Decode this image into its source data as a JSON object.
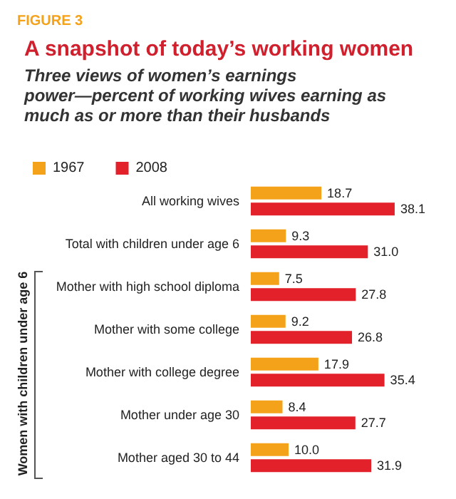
{
  "chart_data": {
    "type": "bar",
    "orientation": "horizontal",
    "title": "A snapshot of today’s working women",
    "subtitle": "Three views of women’s earnings power—percent of working wives earning as much as or more than their husbands",
    "annotations": [
      "FIGURE 3",
      "Women with children under age 6"
    ],
    "categories": [
      "All working wives",
      "Total with children under age 6",
      "Mother with high school diploma",
      "Mother with some college",
      "Mother with college degree",
      "Mother under age 30",
      "Mother aged 30 to 44"
    ],
    "series": [
      {
        "name": "1967",
        "color": "#f5a21b",
        "values": [
          18.7,
          9.3,
          7.5,
          9.2,
          17.9,
          8.4,
          10.0
        ],
        "value_labels": [
          "18.7",
          "9.3",
          "7.5",
          "9.2",
          "17.9",
          "8.4",
          "10.0"
        ]
      },
      {
        "name": "2008",
        "color": "#e3212b",
        "values": [
          38.1,
          31.0,
          27.8,
          26.8,
          35.4,
          27.7,
          31.9
        ],
        "value_labels": [
          "38.1",
          "31.0",
          "27.8",
          "26.8",
          "35.4",
          "27.7",
          "31.9"
        ]
      }
    ],
    "legend": "top left"
  }
}
